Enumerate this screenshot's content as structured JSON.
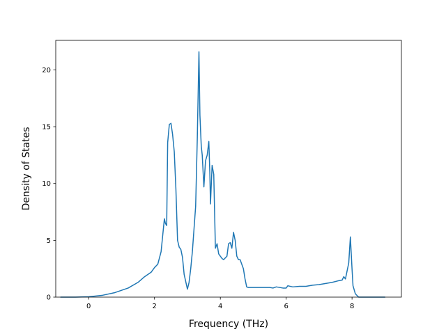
{
  "chart_data": {
    "type": "line",
    "title": "",
    "xlabel": "Frequency (THz)",
    "ylabel": "Density of States",
    "xlim": [
      -1.0,
      9.5
    ],
    "ylim": [
      0,
      22.6
    ],
    "grid": false,
    "x_ticks": [
      0,
      2,
      4,
      6,
      8
    ],
    "y_ticks": [
      0,
      5,
      10,
      15,
      20
    ],
    "x_tick_labels": [
      "0",
      "2",
      "4",
      "6",
      "8"
    ],
    "y_tick_labels": [
      "0",
      "5",
      "10",
      "15",
      "20"
    ],
    "line_color": "#1f77b4",
    "series": [
      {
        "name": "",
        "x": [
          -0.85,
          -0.4,
          0.0,
          0.4,
          0.8,
          1.2,
          1.5,
          1.7,
          1.9,
          2.0,
          2.1,
          2.2,
          2.3,
          2.33,
          2.37,
          2.4,
          2.45,
          2.5,
          2.55,
          2.6,
          2.65,
          2.7,
          2.75,
          2.8,
          2.85,
          2.9,
          3.0,
          3.05,
          3.1,
          3.15,
          3.2,
          3.25,
          3.3,
          3.35,
          3.38,
          3.42,
          3.45,
          3.5,
          3.55,
          3.6,
          3.65,
          3.68,
          3.7,
          3.75,
          3.8,
          3.85,
          3.9,
          3.95,
          4.0,
          4.05,
          4.1,
          4.2,
          4.25,
          4.3,
          4.35,
          4.4,
          4.45,
          4.5,
          4.55,
          4.6,
          4.65,
          4.7,
          4.75,
          4.8,
          4.85,
          4.9,
          5.0,
          5.5,
          5.6,
          5.7,
          5.9,
          6.0,
          6.05,
          6.2,
          6.4,
          6.6,
          6.8,
          7.0,
          7.2,
          7.4,
          7.6,
          7.7,
          7.75,
          7.8,
          7.85,
          7.9,
          7.95,
          8.0,
          8.03,
          8.1,
          8.2,
          8.5,
          9.0
        ],
        "y": [
          0.0,
          0.0,
          0.03,
          0.15,
          0.4,
          0.8,
          1.3,
          1.8,
          2.2,
          2.6,
          2.9,
          4.0,
          6.9,
          6.5,
          6.3,
          13.6,
          15.2,
          15.3,
          14.3,
          12.8,
          9.5,
          5.0,
          4.4,
          4.2,
          3.5,
          2.0,
          0.7,
          1.3,
          2.5,
          4.0,
          6.0,
          8.0,
          14.0,
          21.6,
          16.0,
          13.3,
          12.5,
          9.7,
          12.0,
          12.5,
          13.7,
          11.0,
          8.2,
          11.6,
          10.8,
          4.3,
          4.7,
          3.8,
          3.6,
          3.4,
          3.3,
          3.6,
          4.7,
          4.8,
          4.3,
          5.7,
          5.0,
          3.6,
          3.3,
          3.3,
          2.9,
          2.5,
          1.6,
          0.9,
          0.85,
          0.85,
          0.85,
          0.85,
          0.8,
          0.9,
          0.8,
          0.8,
          1.0,
          0.9,
          0.95,
          0.95,
          1.05,
          1.1,
          1.2,
          1.3,
          1.45,
          1.5,
          1.8,
          1.6,
          2.3,
          3.0,
          5.3,
          2.5,
          1.0,
          0.3,
          0.0,
          0.0,
          0.0
        ]
      }
    ]
  }
}
